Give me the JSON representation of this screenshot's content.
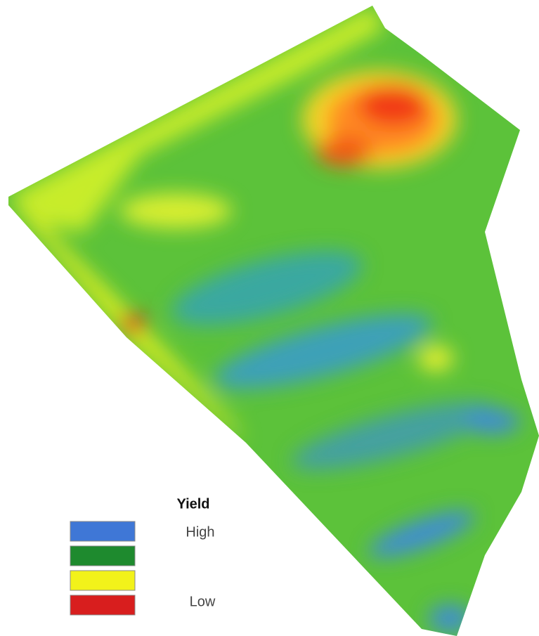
{
  "legend": {
    "title": "Yield",
    "colors": [
      "#3f77d6",
      "#1e8a2e",
      "#f2f21a",
      "#d81e1e"
    ],
    "high_label": "High",
    "low_label": "Low"
  }
}
